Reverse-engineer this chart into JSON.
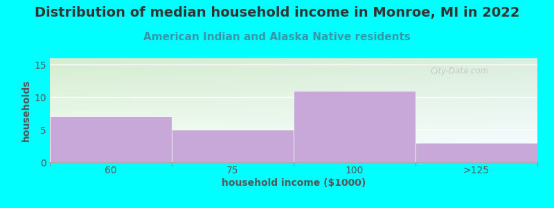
{
  "title": "Distribution of median household income in Monroe, MI in 2022",
  "subtitle": "American Indian and Alaska Native residents",
  "xlabel": "household income ($1000)",
  "ylabel": "households",
  "categories": [
    "60",
    "75",
    "100",
    ">125"
  ],
  "values": [
    7,
    5,
    11,
    3
  ],
  "bar_color": "#C8A8D8",
  "bar_edgecolor": "#C8A8D8",
  "ylim": [
    0,
    16
  ],
  "yticks": [
    0,
    5,
    10,
    15
  ],
  "background_outer": "#00FFFF",
  "bg_top_left": "#D8EED0",
  "bg_bottom_right": "#FFFFFF",
  "title_fontsize": 14,
  "subtitle_fontsize": 11,
  "subtitle_color": "#3399AA",
  "axis_label_fontsize": 10,
  "tick_fontsize": 10,
  "watermark": "City-Data.com",
  "title_color": "#333333"
}
